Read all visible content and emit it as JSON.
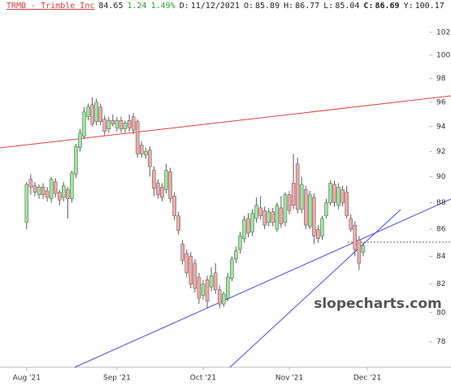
{
  "chart_data": {
    "type": "candlestick",
    "header": {
      "symbol": "TRMB - Trimble Inc",
      "last": 84.65,
      "change": 1.24,
      "change_pct": "1.49%",
      "d_label": "D:",
      "date": "11/12/2021",
      "o_label": "O:",
      "open": 85.89,
      "h_label": "H:",
      "high": 86.77,
      "l_label": "L:",
      "low": 85.04,
      "c_label": "C:",
      "close": 86.69,
      "y_label": "Y:",
      "y_value": 100.17
    },
    "watermark": "slopecharts.com",
    "up_color": "#98e898",
    "down_color": "#f2a8a8",
    "log_scale": true,
    "grid": false,
    "ylim": [
      76.3,
      104.9
    ],
    "yticks": [
      78,
      80,
      82,
      84,
      86,
      88,
      90,
      92,
      94,
      96,
      98,
      100,
      102
    ],
    "xlim": [
      -6.5,
      103.4
    ],
    "xticks": [
      {
        "value": 0,
        "label": "Aug '21"
      },
      {
        "value": 22,
        "label": "Sep '21"
      },
      {
        "value": 43,
        "label": "Oct '21"
      },
      {
        "value": 64,
        "label": "Nov '21"
      },
      {
        "value": 83,
        "label": "Dec '21"
      }
    ],
    "open": [
      86.5,
      89.8,
      89.3,
      88.6,
      89.2,
      88.9,
      88.3,
      89.6,
      88.8,
      88.4,
      89.0,
      88.3,
      90.2,
      92.3,
      93.2,
      94.8,
      95.8,
      94.4,
      95.6,
      94.6,
      93.8,
      94.5,
      93.9,
      94.5,
      93.8,
      94.5,
      94.8,
      94.4,
      92.5,
      91.7,
      92.1,
      90.5,
      89.5,
      89.2,
      89.0,
      90.4,
      88.5,
      87.0,
      84.9,
      84.2,
      84.0,
      83.5,
      82.5,
      81.2,
      82.3,
      81.8,
      82.8,
      81.6,
      80.6,
      81.0,
      82.4,
      83.8,
      84.5,
      85.3,
      86.8,
      85.8,
      86.8,
      87.6,
      87.4,
      86.5,
      87.3,
      86.0,
      87.6,
      86.5,
      88.6,
      89.5,
      91.0,
      87.5,
      89.0,
      86.2,
      88.4,
      86.0,
      85.5,
      87.0,
      88.0,
      89.4,
      87.8,
      89.0,
      88.8,
      86.8,
      86.3,
      85.2,
      84.3
    ],
    "high": [
      89.6,
      90.2,
      89.6,
      89.4,
      89.5,
      89.2,
      90.0,
      89.9,
      89.0,
      89.6,
      89.2,
      90.5,
      92.6,
      93.8,
      95.6,
      95.9,
      96.4,
      96.3,
      95.9,
      94.9,
      94.8,
      95.0,
      94.8,
      94.8,
      94.5,
      95.0,
      95.1,
      94.6,
      92.8,
      92.3,
      92.4,
      90.8,
      89.8,
      89.5,
      91.0,
      90.7,
      88.8,
      87.3,
      85.2,
      84.5,
      84.3,
      83.8,
      82.8,
      82.3,
      82.6,
      83.2,
      83.5,
      81.9,
      81.5,
      82.8,
      84.0,
      84.7,
      85.8,
      87.0,
      87.2,
      87.5,
      88.4,
      88.5,
      87.7,
      87.6,
      87.6,
      88.0,
      88.5,
      88.8,
      88.9,
      91.8,
      91.5,
      90.0,
      89.3,
      88.9,
      88.7,
      86.3,
      87.0,
      88.3,
      89.7,
      89.7,
      89.5,
      89.3,
      89.3,
      87.1,
      86.6,
      85.5,
      85.0
    ],
    "low": [
      86.0,
      88.6,
      88.5,
      88.3,
      88.3,
      88.1,
      88.0,
      88.4,
      87.8,
      88.1,
      86.8,
      88.0,
      89.9,
      92.0,
      93.0,
      94.5,
      94.0,
      94.1,
      94.1,
      93.3,
      93.5,
      94.0,
      93.6,
      93.5,
      93.5,
      93.6,
      93.4,
      91.5,
      91.5,
      91.4,
      90.0,
      88.5,
      88.3,
      88.1,
      88.7,
      88.0,
      86.7,
      85.6,
      83.4,
      82.5,
      81.7,
      81.4,
      80.6,
      80.9,
      80.3,
      81.5,
      81.3,
      80.3,
      80.4,
      80.8,
      82.2,
      83.5,
      84.2,
      85.0,
      85.4,
      85.5,
      86.5,
      86.7,
      86.0,
      86.2,
      86.2,
      85.8,
      86.1,
      86.2,
      87.1,
      87.5,
      87.2,
      87.2,
      86.0,
      86.0,
      84.9,
      85.0,
      85.2,
      86.8,
      87.8,
      87.7,
      87.5,
      87.7,
      86.8,
      85.8,
      84.0,
      83.0,
      84.0
    ],
    "close": [
      89.4,
      89.2,
      88.8,
      89.2,
      88.6,
      88.4,
      89.8,
      88.7,
      88.2,
      89.3,
      88.3,
      90.3,
      92.4,
      93.5,
      95.2,
      95.6,
      94.2,
      96.0,
      94.4,
      93.6,
      94.5,
      94.2,
      94.5,
      93.8,
      94.3,
      93.9,
      93.7,
      91.8,
      91.8,
      92.0,
      90.8,
      89.1,
      88.6,
      88.4,
      90.5,
      88.3,
      87.0,
      85.9,
      83.7,
      82.8,
      82.0,
      81.7,
      81.0,
      82.0,
      80.8,
      82.6,
      81.6,
      80.6,
      81.3,
      82.5,
      83.8,
      84.4,
      85.5,
      86.7,
      85.7,
      87.2,
      87.8,
      87.0,
      86.3,
      87.3,
      86.5,
      87.8,
      86.4,
      88.6,
      87.4,
      87.8,
      87.5,
      89.4,
      86.3,
      88.6,
      85.5,
      85.3,
      86.8,
      88.0,
      89.5,
      88.0,
      89.2,
      88.0,
      87.0,
      86.0,
      84.5,
      83.5,
      84.8
    ]
  }
}
